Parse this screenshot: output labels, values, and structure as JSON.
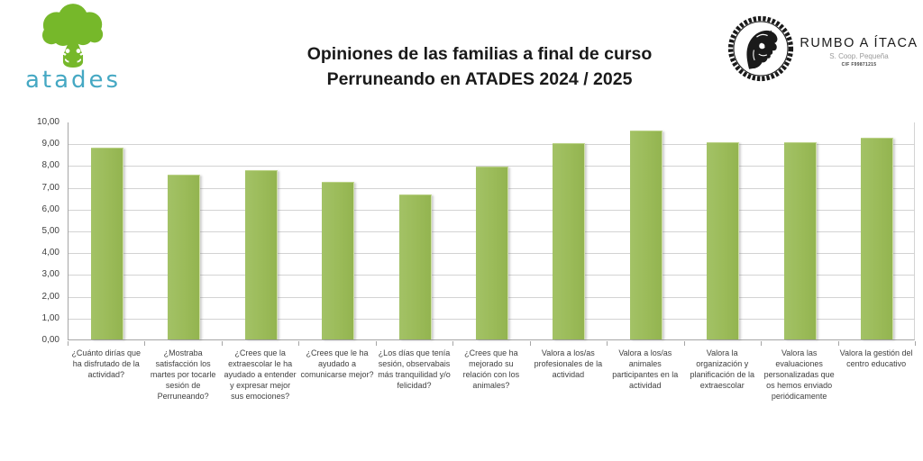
{
  "header": {
    "atades_wordmark": "atades",
    "title_line1": "Opiniones de las familias a final de curso",
    "title_line2": "Perruneando en ATADES 2024 / 2025",
    "stamp": {
      "name": "RUMBO A ÍTACA",
      "subtitle": "S. Coop. Pequeña",
      "cif": "CIF F99871215"
    }
  },
  "colors": {
    "bar": "#9bbb59",
    "gridline": "#d3d3d3",
    "axis_line": "#a6a6a6",
    "axis_text": "#3f3f3f",
    "atades_green": "#76b82a",
    "atades_teal": "#45a8c3",
    "title_text": "#1a1a1a"
  },
  "chart_data": {
    "type": "bar",
    "title": "Opiniones de las familias a final de curso Perruneando en ATADES 2024 / 2025",
    "categories": [
      "¿Cuánto dirías que ha disfrutado de la actividad?",
      "¿Mostraba satisfacción los martes por tocarle sesión de Perruneando?",
      "¿Crees que la extraescolar le ha ayudado a entender y expresar mejor sus emociones?",
      "¿Crees que le ha ayudado a comunicarse mejor?",
      "¿Los días que tenía sesión, observabais más tranquilidad y/o felicidad?",
      "¿Crees que ha mejorado su relación con los animales?",
      "Valora a los/as profesionales de la actividad",
      "Valora a los/as animales participantes en la actividad",
      "Valora la organización y planificación de la extraescolar",
      "Valora las evaluaciones personalizadas que os hemos enviado periódicamente",
      "Valora la gestión del centro educativo"
    ],
    "values": [
      8.8,
      7.55,
      7.75,
      7.25,
      6.65,
      7.95,
      9.0,
      9.6,
      9.05,
      9.05,
      9.25
    ],
    "xlabel": "",
    "ylabel": "",
    "ylim": [
      0,
      10
    ],
    "ytick_step": 1,
    "ytick_labels": [
      "10,00",
      "9,00",
      "8,00",
      "7,00",
      "6,00",
      "5,00",
      "4,00",
      "3,00",
      "2,00",
      "1,00",
      "0,00"
    ],
    "grid": true,
    "legend": false,
    "bar_color": "#9bbb59"
  }
}
